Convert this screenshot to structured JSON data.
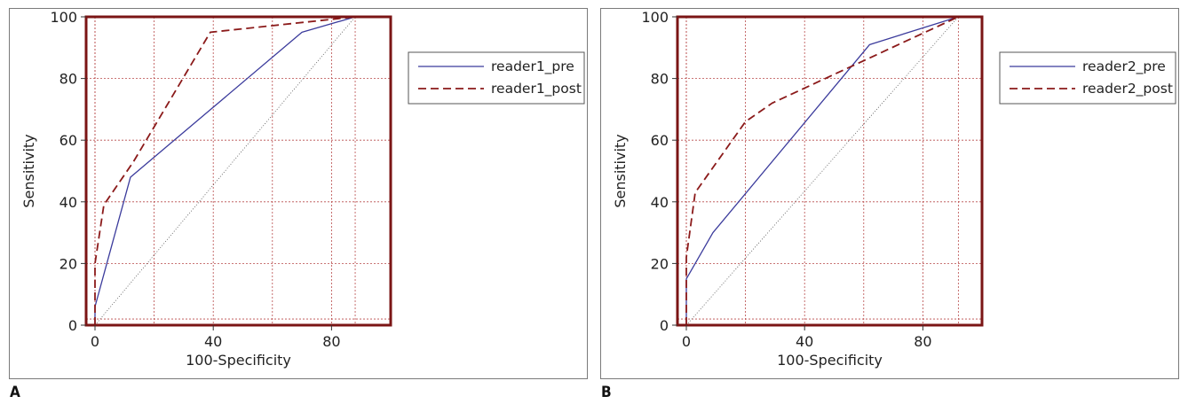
{
  "panels": [
    {
      "letter": "A",
      "chart_data": {
        "type": "line",
        "xlabel": "100-Specificity",
        "ylabel": "Sensitivity",
        "xlim": [
          -3,
          100
        ],
        "ylim": [
          0,
          100
        ],
        "xticks": [
          0,
          40,
          80
        ],
        "yticks": [
          0,
          20,
          40,
          60,
          80,
          100
        ],
        "grid": true,
        "legend_position": "right",
        "diagonal_reference": true,
        "series": [
          {
            "name": "reader1_pre",
            "style": "solid",
            "color": "#3b3b9c",
            "x": [
              0,
              0,
              12,
              70,
              88
            ],
            "y": [
              0,
              6,
              48,
              95,
              100
            ]
          },
          {
            "name": "reader1_post",
            "style": "dashed",
            "color": "#8b1a1a",
            "x": [
              0,
              0,
              3,
              13,
              39,
              88
            ],
            "y": [
              0,
              20,
              39,
              53,
              95,
              100
            ]
          }
        ]
      }
    },
    {
      "letter": "B",
      "chart_data": {
        "type": "line",
        "xlabel": "100-Specificity",
        "ylabel": "Sensitivity",
        "xlim": [
          -3,
          100
        ],
        "ylim": [
          0,
          100
        ],
        "xticks": [
          0,
          40,
          80
        ],
        "yticks": [
          0,
          20,
          40,
          60,
          80,
          100
        ],
        "grid": true,
        "legend_position": "right",
        "diagonal_reference": true,
        "series": [
          {
            "name": "reader2_pre",
            "style": "solid",
            "color": "#3b3b9c",
            "x": [
              0,
              0,
              9,
              62,
              92
            ],
            "y": [
              0,
              15,
              30,
              91,
              100
            ]
          },
          {
            "name": "reader2_post",
            "style": "dashed",
            "color": "#8b1a1a",
            "x": [
              0,
              0,
              3,
              20,
              29,
              92
            ],
            "y": [
              0,
              22,
              43,
              66,
              72,
              100
            ]
          }
        ]
      }
    }
  ],
  "colors": {
    "frame": "#7b1515",
    "grid": "#b84a4a",
    "diagonal": "#555555",
    "panel_border": "#7a7a7a"
  }
}
